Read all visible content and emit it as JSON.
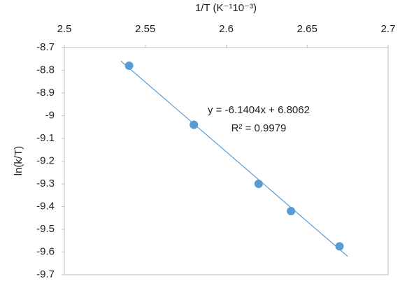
{
  "chart_data": {
    "type": "scatter",
    "x_label": "1/T (K⁻¹10⁻³)",
    "y_label": "ln(k/T)",
    "annotations": [
      "y = -6.1404x + 6.8062",
      "R² = 0.9979"
    ],
    "series": [
      {
        "color": "#5b9bd5",
        "x": [
          2.54,
          2.58,
          2.62,
          2.64,
          2.67
        ],
        "values": [
          -8.78,
          -9.04,
          -9.3,
          -9.42,
          -9.575
        ]
      }
    ],
    "trendline": {
      "color": "#5b9bd5",
      "x": [
        2.535,
        2.675
      ],
      "values": [
        -8.76,
        -9.619
      ]
    },
    "xlim": [
      2.5,
      2.7
    ],
    "xticks": [
      2.5,
      2.55,
      2.6,
      2.65,
      2.7
    ],
    "ylim": [
      -9.7,
      -8.7
    ],
    "yticks": [
      -8.7,
      -8.8,
      -8.9,
      -9,
      -9.1,
      -9.2,
      -9.3,
      -9.4,
      -9.5,
      -9.6,
      -9.7
    ],
    "grid": false
  }
}
